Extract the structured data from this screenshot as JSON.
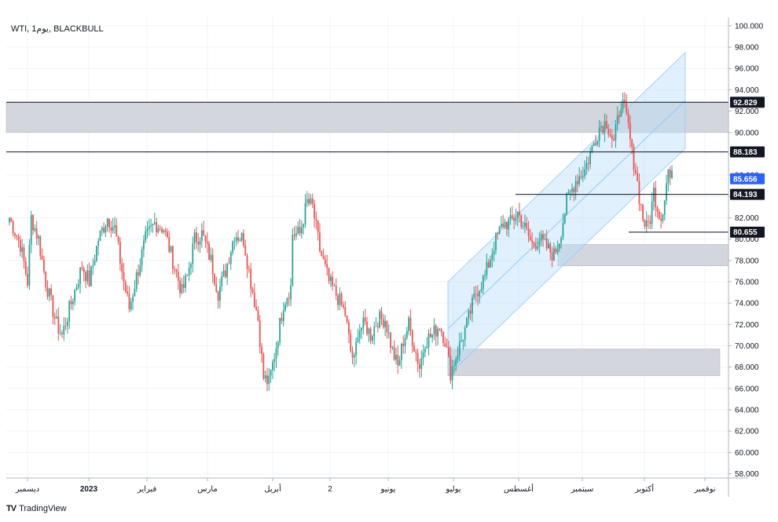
{
  "chart_data": {
    "type": "candlestick",
    "title": "WTI, 1يوم, BLACKBULL",
    "ylim": [
      57.6,
      100.8
    ],
    "yticks": [
      "58.000",
      "60.000",
      "62.000",
      "64.000",
      "66.000",
      "68.000",
      "70.000",
      "72.000",
      "74.000",
      "76.000",
      "78.000",
      "80.000",
      "82.000",
      "84.000",
      "86.000",
      "88.000",
      "90.000",
      "92.000",
      "94.000",
      "96.000",
      "98.000",
      "100.000"
    ],
    "xticks": [
      "ديسمبر",
      "2023",
      "فبراير",
      "مارس",
      "أبريل",
      "2",
      "يونيو",
      "يوليو",
      "أغسطس",
      "سبتمبر",
      "أكتوبر",
      "نوفمبر"
    ],
    "price_labels": [
      {
        "label": "92.829",
        "value": 92.829,
        "style": "dark"
      },
      {
        "label": "88.183",
        "value": 88.183,
        "style": "dark"
      },
      {
        "label": "85.656",
        "value": 85.656,
        "style": "current"
      },
      {
        "label": "84.193",
        "value": 84.193,
        "style": "dark"
      },
      {
        "label": "80.655",
        "value": 80.655,
        "style": "dark"
      }
    ],
    "key_lines": [
      92.829,
      88.183,
      84.193,
      80.655
    ],
    "zones": [
      {
        "low": 90.0,
        "high": 92.8
      },
      {
        "low": 77.5,
        "high": 79.5
      },
      {
        "low": 67.2,
        "high": 69.7
      }
    ],
    "channel": {
      "start": [
        76.0,
        67.2
      ],
      "end": [
        97.5,
        88.5
      ]
    },
    "path": [
      [
        0,
        82.0
      ],
      [
        6,
        79.5
      ],
      [
        10,
        76.0
      ],
      [
        12,
        82.0
      ],
      [
        16,
        80.0
      ],
      [
        20,
        76.0
      ],
      [
        26,
        72.0
      ],
      [
        29,
        71.0
      ],
      [
        34,
        74.0
      ],
      [
        40,
        77.5
      ],
      [
        44,
        76.0
      ],
      [
        49,
        80.0
      ],
      [
        54,
        82.0
      ],
      [
        58,
        81.0
      ],
      [
        63,
        76.0
      ],
      [
        66,
        73.5
      ],
      [
        70,
        76.5
      ],
      [
        75,
        80.0
      ],
      [
        80,
        81.5
      ],
      [
        85,
        81.0
      ],
      [
        90,
        78.0
      ],
      [
        95,
        75.0
      ],
      [
        98,
        76.5
      ],
      [
        102,
        80.0
      ],
      [
        106,
        80.5
      ],
      [
        111,
        78.0
      ],
      [
        115,
        75.0
      ],
      [
        119,
        77.0
      ],
      [
        124,
        80.5
      ],
      [
        129,
        80.0
      ],
      [
        133,
        76.0
      ],
      [
        137,
        72.5
      ],
      [
        140,
        67.0
      ],
      [
        143,
        66.5
      ],
      [
        147,
        70.0
      ],
      [
        151,
        74.0
      ],
      [
        155,
        75.5
      ],
      [
        156,
        80.5
      ],
      [
        160,
        80.5
      ],
      [
        164,
        83.5
      ],
      [
        167,
        83.0
      ],
      [
        171,
        79.0
      ],
      [
        176,
        76.0
      ],
      [
        181,
        74.5
      ],
      [
        185,
        73.0
      ],
      [
        188,
        69.5
      ],
      [
        190,
        68.5
      ],
      [
        192,
        71.5
      ],
      [
        196,
        72.0
      ],
      [
        199,
        71.0
      ],
      [
        203,
        72.5
      ],
      [
        207,
        72.5
      ],
      [
        211,
        69.5
      ],
      [
        214,
        68.0
      ],
      [
        217,
        70.5
      ],
      [
        220,
        72.0
      ],
      [
        223,
        70.0
      ],
      [
        226,
        68.0
      ],
      [
        229,
        70.5
      ],
      [
        233,
        71.0
      ],
      [
        237,
        72.0
      ],
      [
        240,
        70.5
      ],
      [
        243,
        67.5
      ],
      [
        247,
        69.5
      ],
      [
        252,
        72.0
      ],
      [
        257,
        75.0
      ],
      [
        262,
        76.5
      ],
      [
        267,
        79.5
      ],
      [
        272,
        81.5
      ],
      [
        276,
        81.5
      ],
      [
        280,
        82.5
      ],
      [
        284,
        81.0
      ],
      [
        288,
        79.5
      ],
      [
        292,
        80.0
      ],
      [
        297,
        79.0
      ],
      [
        300,
        78.5
      ],
      [
        303,
        80.0
      ],
      [
        307,
        83.5
      ],
      [
        312,
        85.5
      ],
      [
        317,
        86.5
      ],
      [
        321,
        88.5
      ],
      [
        325,
        90.5
      ],
      [
        329,
        91.0
      ],
      [
        333,
        89.0
      ],
      [
        337,
        93.0
      ],
      [
        339,
        92.0
      ],
      [
        341,
        90.5
      ],
      [
        343,
        88.0
      ],
      [
        345,
        86.5
      ],
      [
        347,
        84.0
      ],
      [
        349,
        82.0
      ],
      [
        351,
        81.0
      ],
      [
        353,
        82.0
      ],
      [
        355,
        84.5
      ],
      [
        357,
        83.0
      ],
      [
        359,
        82.0
      ],
      [
        361,
        84.0
      ],
      [
        363,
        86.5
      ],
      [
        364,
        85.7
      ]
    ]
  },
  "brand": {
    "name": "TradingView",
    "logo": "TV"
  }
}
